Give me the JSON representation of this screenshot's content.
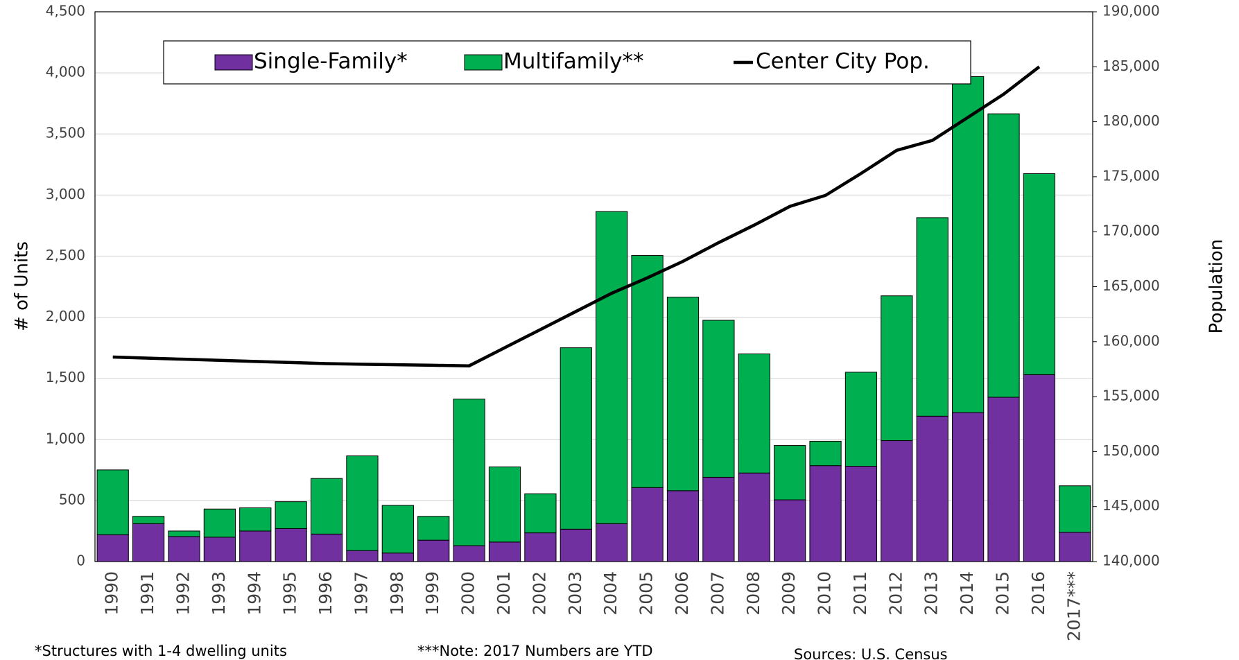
{
  "chart_data": {
    "type": "bar",
    "stacked": true,
    "categories": [
      "1990",
      "1991",
      "1992",
      "1993",
      "1994",
      "1995",
      "1996",
      "1997",
      "1998",
      "1999",
      "2000",
      "2001",
      "2002",
      "2003",
      "2004",
      "2005",
      "2006",
      "2007",
      "2008",
      "2009",
      "2010",
      "2011",
      "2012",
      "2013",
      "2014",
      "2015",
      "2016",
      "2017***"
    ],
    "series": [
      {
        "name": "Single-Family*",
        "color": "#7030a0",
        "values": [
          220,
          310,
          205,
          200,
          250,
          270,
          225,
          90,
          70,
          175,
          130,
          160,
          235,
          265,
          310,
          605,
          580,
          690,
          725,
          505,
          785,
          780,
          990,
          1190,
          1220,
          1345,
          1530,
          240
        ]
      },
      {
        "name": "Multifamily**",
        "color": "#00b050",
        "values": [
          530,
          60,
          45,
          230,
          190,
          220,
          455,
          775,
          390,
          195,
          1200,
          615,
          320,
          1485,
          2555,
          1900,
          1585,
          1285,
          975,
          445,
          200,
          770,
          1185,
          1625,
          2750,
          2320,
          1645,
          380
        ]
      },
      {
        "name": "Center City Pop.",
        "color": "#000000",
        "type": "line",
        "axis": "y2",
        "values": [
          158600,
          158500,
          158400,
          158300,
          158200,
          158100,
          158000,
          157950,
          157900,
          157850,
          157800,
          159450,
          161100,
          162750,
          164400,
          165800,
          167300,
          169000,
          170600,
          172300,
          173300,
          175300,
          177400,
          178300,
          180400,
          182500,
          185000,
          null
        ]
      }
    ],
    "ylabel": "# of Units",
    "y2label": "Population",
    "ylim": [
      0,
      4500
    ],
    "yticks": [
      0,
      500,
      {
        "value": 1000,
        "label": "1,000"
      },
      {
        "value": 1500,
        "label": "1,500"
      },
      {
        "value": 2000,
        "label": "2,000"
      },
      {
        "value": 2500,
        "label": "2,500"
      },
      {
        "value": 3000,
        "label": "3,000"
      },
      {
        "value": 3500,
        "label": "3,500"
      },
      {
        "value": 4000,
        "label": "4,000"
      },
      {
        "value": 4500,
        "label": "4,500"
      }
    ],
    "y2lim": [
      140000,
      190000
    ],
    "y2ticks": [
      {
        "value": 140000,
        "label": "140,000"
      },
      {
        "value": 145000,
        "label": "145,000"
      },
      {
        "value": 150000,
        "label": "150,000"
      },
      {
        "value": 155000,
        "label": "155,000"
      },
      {
        "value": 160000,
        "label": "160,000"
      },
      {
        "value": 165000,
        "label": "165,000"
      },
      {
        "value": 170000,
        "label": "170,000"
      },
      {
        "value": 175000,
        "label": "175,000"
      },
      {
        "value": 180000,
        "label": "180,000"
      },
      {
        "value": 185000,
        "label": "185,000"
      },
      {
        "value": 190000,
        "label": "190,000"
      }
    ],
    "grid": true,
    "legend": "top",
    "notes": [
      "*Structures with 1-4 dwelling units",
      "***Note: 2017 Numbers are YTD",
      "Sources: U.S. Census"
    ]
  }
}
